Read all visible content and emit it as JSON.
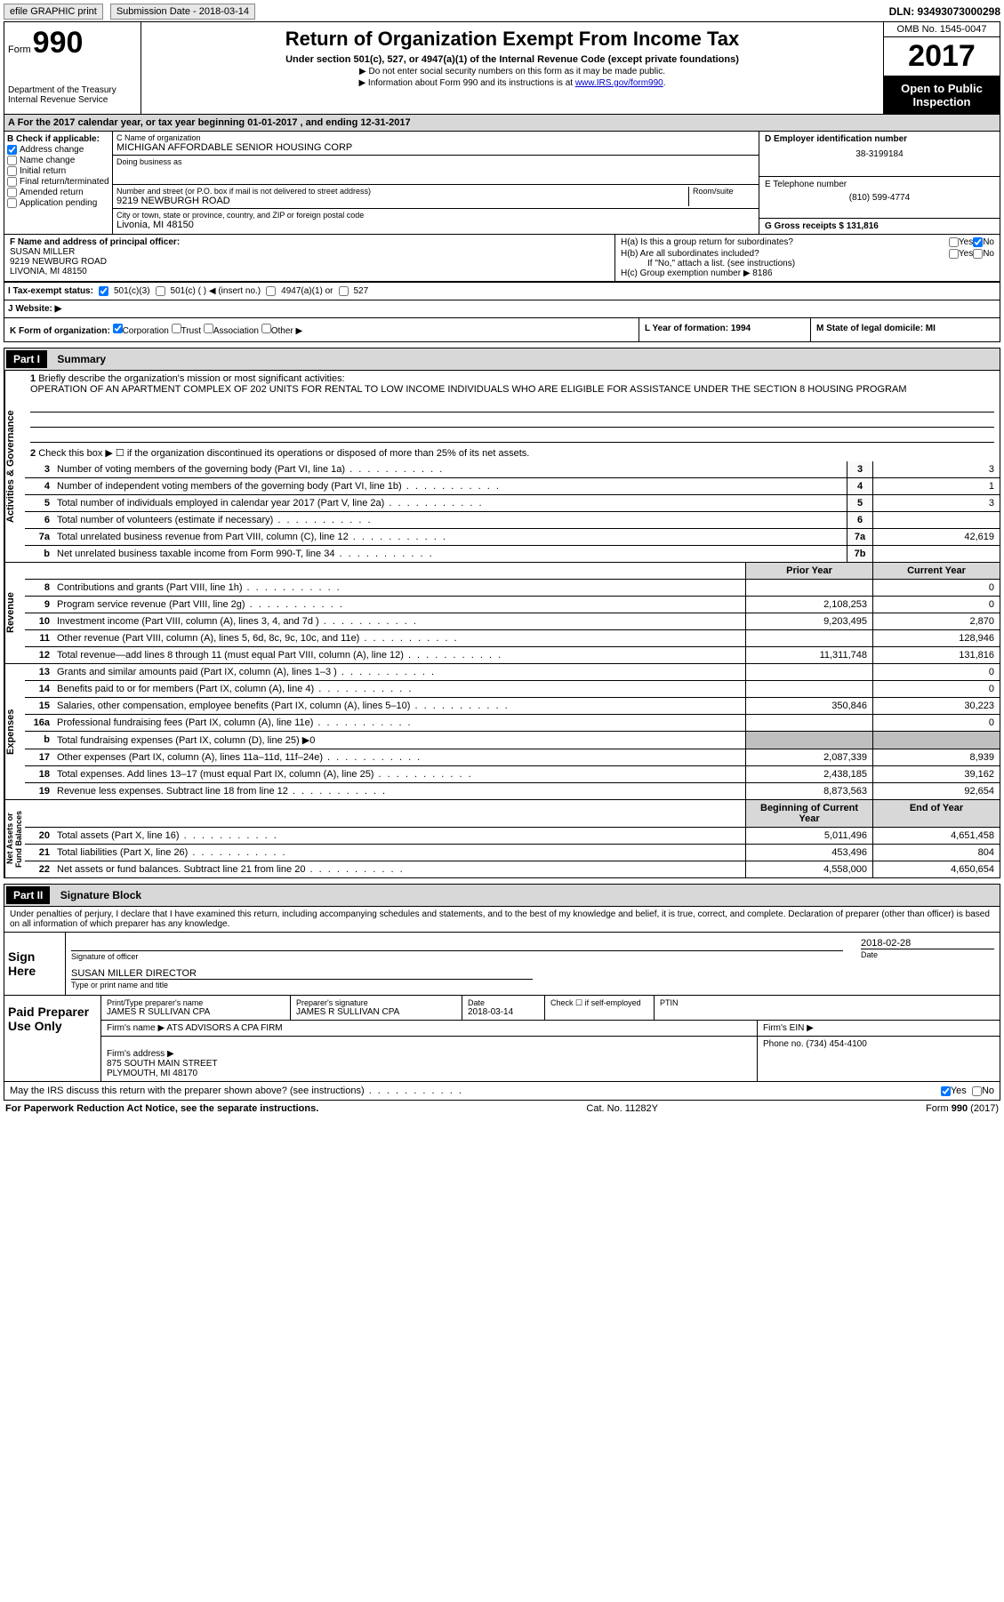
{
  "topbar": {
    "efile": "efile GRAPHIC print",
    "submission": "Submission Date - 2018-03-14",
    "dln": "DLN: 93493073000298"
  },
  "header": {
    "form": "Form",
    "num": "990",
    "dept": "Department of the Treasury\nInternal Revenue Service",
    "title": "Return of Organization Exempt From Income Tax",
    "subtitle": "Under section 501(c), 527, or 4947(a)(1) of the Internal Revenue Code (except private foundations)",
    "note1": "▶ Do not enter social security numbers on this form as it may be made public.",
    "note2": "▶ Information about Form 990 and its instructions is at ",
    "link": "www.IRS.gov/form990",
    "omb": "OMB No. 1545-0047",
    "year": "2017",
    "public": "Open to Public Inspection"
  },
  "rowA": "A   For the 2017 calendar year, or tax year beginning 01-01-2017    , and ending 12-31-2017",
  "colB": {
    "header": "B Check if applicable:",
    "items": [
      "Address change",
      "Name change",
      "Initial return",
      "Final return/terminated",
      "Amended return",
      "Application pending"
    ]
  },
  "colC": {
    "name_label": "C Name of organization",
    "name": "MICHIGAN AFFORDABLE SENIOR HOUSING CORP",
    "dba_label": "Doing business as",
    "dba": "",
    "addr_label": "Number and street (or P.O. box if mail is not delivered to street address)",
    "room_label": "Room/suite",
    "addr": "9219 NEWBURGH ROAD",
    "city_label": "City or town, state or province, country, and ZIP or foreign postal code",
    "city": "Livonia, MI  48150"
  },
  "colD": {
    "ein_label": "D Employer identification number",
    "ein": "38-3199184",
    "phone_label": "E Telephone number",
    "phone": "(810) 599-4774",
    "gross_label": "G Gross receipts $ 131,816"
  },
  "fh": {
    "f_label": "F Name and address of principal officer:",
    "f_val": "SUSAN MILLER\n9219 NEWBURG ROAD\nLIVONIA, MI  48150",
    "ha": "H(a)  Is this a group return for subordinates?",
    "hb": "H(b)  Are all subordinates included?",
    "hb_note": "If \"No,\" attach a list. (see instructions)",
    "hc": "H(c)  Group exemption number ▶   8186"
  },
  "status": {
    "label": "I   Tax-exempt status:",
    "o1": "501(c)(3)",
    "o2": "501(c) (   ) ◀ (insert no.)",
    "o3": "4947(a)(1) or",
    "o4": "527"
  },
  "website": "J   Website: ▶",
  "rowK": {
    "k": "K Form of organization:",
    "opts": [
      "Corporation",
      "Trust",
      "Association",
      "Other ▶"
    ],
    "l": "L Year of formation: 1994",
    "m": "M State of legal domicile: MI"
  },
  "partI": {
    "head": "Part I",
    "title": "Summary",
    "line1_label": "Briefly describe the organization's mission or most significant activities:",
    "line1_val": "OPERATION OF AN APARTMENT COMPLEX OF 202 UNITS FOR RENTAL TO LOW INCOME INDIVIDUALS WHO ARE ELIGIBLE FOR ASSISTANCE UNDER THE SECTION 8 HOUSING PROGRAM",
    "line2": "Check this box ▶ ☐ if the organization discontinued its operations or disposed of more than 25% of its net assets.",
    "lines_ag": [
      {
        "n": "3",
        "t": "Number of voting members of the governing body (Part VI, line 1a)",
        "b": "3",
        "v": "3"
      },
      {
        "n": "4",
        "t": "Number of independent voting members of the governing body (Part VI, line 1b)",
        "b": "4",
        "v": "1"
      },
      {
        "n": "5",
        "t": "Total number of individuals employed in calendar year 2017 (Part V, line 2a)",
        "b": "5",
        "v": "3"
      },
      {
        "n": "6",
        "t": "Total number of volunteers (estimate if necessary)",
        "b": "6",
        "v": ""
      },
      {
        "n": "7a",
        "t": "Total unrelated business revenue from Part VIII, column (C), line 12",
        "b": "7a",
        "v": "42,619"
      },
      {
        "n": "b",
        "t": "Net unrelated business taxable income from Form 990-T, line 34",
        "b": "7b",
        "v": ""
      }
    ],
    "head_prior": "Prior Year",
    "head_curr": "Current Year",
    "revenue": [
      {
        "n": "8",
        "t": "Contributions and grants (Part VIII, line 1h)",
        "p": "",
        "c": "0"
      },
      {
        "n": "9",
        "t": "Program service revenue (Part VIII, line 2g)",
        "p": "2,108,253",
        "c": "0"
      },
      {
        "n": "10",
        "t": "Investment income (Part VIII, column (A), lines 3, 4, and 7d )",
        "p": "9,203,495",
        "c": "2,870"
      },
      {
        "n": "11",
        "t": "Other revenue (Part VIII, column (A), lines 5, 6d, 8c, 9c, 10c, and 11e)",
        "p": "",
        "c": "128,946"
      },
      {
        "n": "12",
        "t": "Total revenue—add lines 8 through 11 (must equal Part VIII, column (A), line 12)",
        "p": "11,311,748",
        "c": "131,816"
      }
    ],
    "expenses": [
      {
        "n": "13",
        "t": "Grants and similar amounts paid (Part IX, column (A), lines 1–3 )",
        "p": "",
        "c": "0"
      },
      {
        "n": "14",
        "t": "Benefits paid to or for members (Part IX, column (A), line 4)",
        "p": "",
        "c": "0"
      },
      {
        "n": "15",
        "t": "Salaries, other compensation, employee benefits (Part IX, column (A), lines 5–10)",
        "p": "350,846",
        "c": "30,223"
      },
      {
        "n": "16a",
        "t": "Professional fundraising fees (Part IX, column (A), line 11e)",
        "p": "",
        "c": "0"
      },
      {
        "n": "b",
        "t": "Total fundraising expenses (Part IX, column (D), line 25) ▶0",
        "grey": true
      },
      {
        "n": "17",
        "t": "Other expenses (Part IX, column (A), lines 11a–11d, 11f–24e)",
        "p": "2,087,339",
        "c": "8,939"
      },
      {
        "n": "18",
        "t": "Total expenses. Add lines 13–17 (must equal Part IX, column (A), line 25)",
        "p": "2,438,185",
        "c": "39,162"
      },
      {
        "n": "19",
        "t": "Revenue less expenses. Subtract line 18 from line 12",
        "p": "8,873,563",
        "c": "92,654"
      }
    ],
    "head_begin": "Beginning of Current Year",
    "head_end": "End of Year",
    "netassets": [
      {
        "n": "20",
        "t": "Total assets (Part X, line 16)",
        "p": "5,011,496",
        "c": "4,651,458"
      },
      {
        "n": "21",
        "t": "Total liabilities (Part X, line 26)",
        "p": "453,496",
        "c": "804"
      },
      {
        "n": "22",
        "t": "Net assets or fund balances. Subtract line 21 from line 20",
        "p": "4,558,000",
        "c": "4,650,654"
      }
    ],
    "sides": {
      "ag": "Activities & Governance",
      "rev": "Revenue",
      "exp": "Expenses",
      "net": "Net Assets or\nFund Balances"
    }
  },
  "partII": {
    "head": "Part II",
    "title": "Signature Block",
    "penalties": "Under penalties of perjury, I declare that I have examined this return, including accompanying schedules and statements, and to the best of my knowledge and belief, it is true, correct, and complete. Declaration of preparer (other than officer) is based on all information of which preparer has any knowledge.",
    "sign": "Sign Here",
    "sig_officer": "Signature of officer",
    "sig_date": "Date",
    "sig_date_val": "2018-02-28",
    "name_title": "SUSAN MILLER  DIRECTOR",
    "name_title_label": "Type or print name and title",
    "paid": "Paid Preparer Use Only",
    "prep_name_label": "Print/Type preparer's name",
    "prep_name": "JAMES R SULLIVAN CPA",
    "prep_sig_label": "Preparer's signature",
    "prep_sig": "JAMES R SULLIVAN CPA",
    "prep_date_label": "Date",
    "prep_date": "2018-03-14",
    "check_label": "Check ☐ if self-employed",
    "ptin": "PTIN",
    "firm_name_label": "Firm's name      ▶",
    "firm_name": "ATS ADVISORS A CPA FIRM",
    "firm_ein_label": "Firm's EIN ▶",
    "firm_addr_label": "Firm's address ▶",
    "firm_addr": "875 SOUTH MAIN STREET\nPLYMOUTH, MI  48170",
    "firm_phone_label": "Phone no. (734) 454-4100"
  },
  "discuss": "May the IRS discuss this return with the preparer shown above? (see instructions)",
  "footer": {
    "left": "For Paperwork Reduction Act Notice, see the separate instructions.",
    "mid": "Cat. No. 11282Y",
    "right": "Form 990 (2017)"
  },
  "yesno": {
    "yes": "Yes",
    "no": "No"
  }
}
